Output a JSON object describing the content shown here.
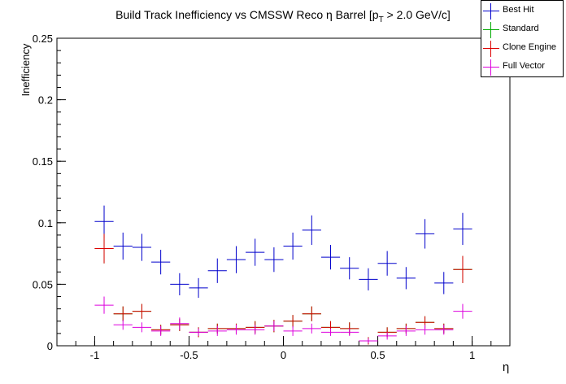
{
  "chart_data": {
    "type": "scatter",
    "title": "Build Track Inefficiency vs CMSSW Reco η Barrel [p_T > 2.0 GeV/c]",
    "title_parts": {
      "pre": "Build Track Inefficiency vs CMSSW Reco η Barrel [p",
      "sub": "T",
      "post": " > 2.0 GeV/c]"
    },
    "xlabel": "η",
    "ylabel": "Inefficiency",
    "xlim": [
      -1.2,
      1.2
    ],
    "ylim": [
      0,
      0.25
    ],
    "x_ticks": [
      {
        "v": -1,
        "label": "-1"
      },
      {
        "v": -0.5,
        "label": "-0.5"
      },
      {
        "v": 0,
        "label": "0"
      },
      {
        "v": 0.5,
        "label": "0.5"
      },
      {
        "v": 1,
        "label": "1"
      }
    ],
    "y_ticks": [
      {
        "v": 0,
        "label": "0"
      },
      {
        "v": 0.05,
        "label": "0.05"
      },
      {
        "v": 0.1,
        "label": "0.1"
      },
      {
        "v": 0.15,
        "label": "0.15"
      },
      {
        "v": 0.2,
        "label": "0.2"
      },
      {
        "v": 0.25,
        "label": "0.25"
      }
    ],
    "bin_half_width": 0.05,
    "x": [
      -0.95,
      -0.85,
      -0.75,
      -0.65,
      -0.55,
      -0.45,
      -0.35,
      -0.25,
      -0.15,
      -0.05,
      0.05,
      0.15,
      0.25,
      0.35,
      0.45,
      0.55,
      0.65,
      0.75,
      0.85,
      0.95
    ],
    "series": [
      {
        "name": "Best Hit",
        "color": "#0000cc",
        "values": [
          0.101,
          0.081,
          0.08,
          0.068,
          0.05,
          0.047,
          0.061,
          0.07,
          0.076,
          0.07,
          0.081,
          0.094,
          0.072,
          0.063,
          0.054,
          0.067,
          0.055,
          0.091,
          0.051,
          0.095
        ],
        "errors": [
          0.013,
          0.011,
          0.011,
          0.01,
          0.009,
          0.008,
          0.01,
          0.011,
          0.011,
          0.01,
          0.011,
          0.012,
          0.01,
          0.009,
          0.009,
          0.01,
          0.009,
          0.012,
          0.009,
          0.013
        ]
      },
      {
        "name": "Standard",
        "color": "#00aa00",
        "values": [
          0.079,
          0.026,
          0.028,
          0.013,
          0.017,
          0.011,
          0.014,
          0.014,
          0.015,
          0.016,
          0.02,
          0.026,
          0.015,
          0.014,
          0.004,
          0.011,
          0.014,
          0.019,
          0.014,
          0.062
        ],
        "errors": [
          0.012,
          0.006,
          0.006,
          0.004,
          0.005,
          0.004,
          0.004,
          0.004,
          0.005,
          0.005,
          0.005,
          0.006,
          0.005,
          0.005,
          0.003,
          0.004,
          0.004,
          0.005,
          0.004,
          0.011
        ]
      },
      {
        "name": "Clone Engine",
        "color": "#dd0000",
        "values": [
          0.079,
          0.026,
          0.028,
          0.013,
          0.017,
          0.011,
          0.014,
          0.014,
          0.015,
          0.016,
          0.02,
          0.026,
          0.015,
          0.014,
          0.004,
          0.011,
          0.014,
          0.019,
          0.014,
          0.062
        ],
        "errors": [
          0.012,
          0.006,
          0.006,
          0.004,
          0.005,
          0.004,
          0.004,
          0.004,
          0.005,
          0.005,
          0.005,
          0.006,
          0.005,
          0.005,
          0.003,
          0.004,
          0.004,
          0.005,
          0.004,
          0.011
        ]
      },
      {
        "name": "Full Vector",
        "color": "#dd00dd",
        "values": [
          0.033,
          0.017,
          0.015,
          0.012,
          0.018,
          0.011,
          0.012,
          0.013,
          0.013,
          0.016,
          0.012,
          0.014,
          0.011,
          0.011,
          0.004,
          0.008,
          0.012,
          0.013,
          0.013,
          0.028
        ],
        "errors": [
          0.007,
          0.004,
          0.004,
          0.004,
          0.005,
          0.003,
          0.004,
          0.004,
          0.004,
          0.004,
          0.004,
          0.004,
          0.003,
          0.003,
          0.002,
          0.003,
          0.004,
          0.004,
          0.004,
          0.006
        ]
      }
    ],
    "legend": {
      "position": "top-right"
    },
    "grid": false
  }
}
